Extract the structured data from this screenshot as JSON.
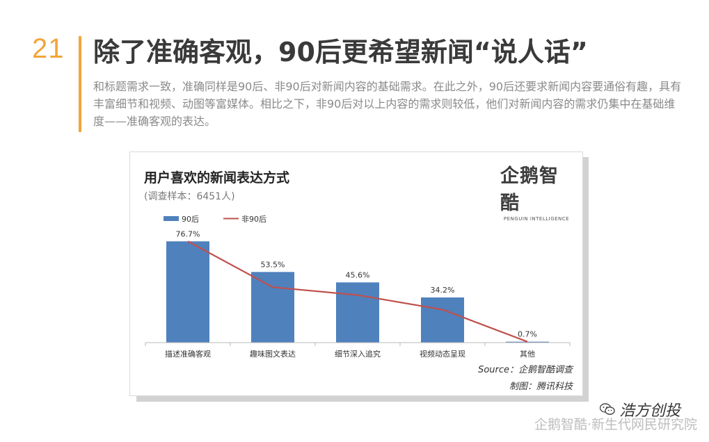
{
  "page": {
    "number": "21",
    "headline": "除了准确客观，90后更希望新闻“说人话”",
    "intro": "和标题需求一致，准确同样是90后、非90后对新闻内容的基础需求。在此之外，90后还要求新闻内容要通俗有趣，具有丰富细节和视频、动图等富媒体。相比之下，非90后对以上内容的需求则较低，他们对新闻内容的需求仍集中在基础维度——准确客观的表达。",
    "accent_color": "#f3a43a"
  },
  "logo": {
    "text": "企鹅智酷",
    "subtext": "PENGUIN INTELLIGENCE"
  },
  "notes": {
    "source": "Source：企鹅智酷调查",
    "credit": "制图：腾讯科技"
  },
  "watermark": {
    "brand": "浩方创投",
    "footer": "企鹅智酷·新生代网民研究院",
    "icon": "wechat-icon"
  },
  "chart_data": {
    "type": "bar",
    "title": "用户喜欢的新闻表达方式",
    "subtitle": "(调查样本：6451人)",
    "categories": [
      "描述准确客观",
      "趣味图文表达",
      "细节深入追究",
      "视频动态呈现",
      "其他"
    ],
    "series": [
      {
        "name": "90后",
        "type": "bar",
        "color": "#4f81bd",
        "values": [
          76.7,
          53.5,
          45.6,
          34.2,
          0.7
        ],
        "labels": [
          "76.7%",
          "53.5%",
          "45.6%",
          "34.2%",
          "0.7%"
        ]
      },
      {
        "name": "非90后",
        "type": "line",
        "color": "#c0504d",
        "values": [
          76.7,
          42.0,
          36.0,
          25.0,
          0.7
        ]
      }
    ],
    "ylim": [
      0,
      80
    ],
    "legend_position": "top-left",
    "grid": false
  }
}
